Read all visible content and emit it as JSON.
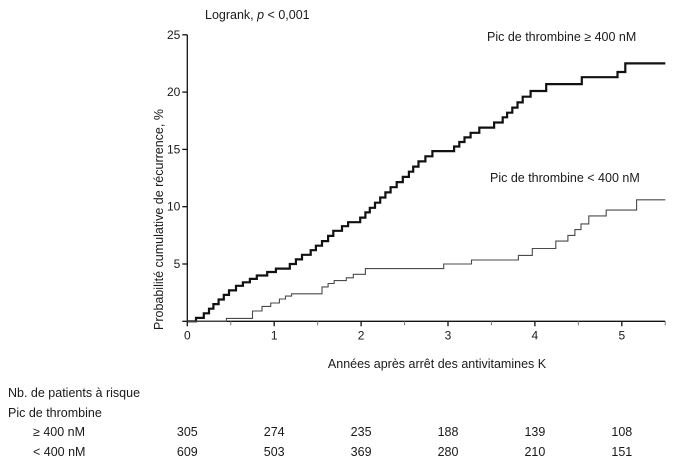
{
  "annotation": {
    "logrank_prefix": "Logrank, ",
    "p_symbol": "p",
    "p_value_suffix": " < 0,001"
  },
  "chart_data": {
    "type": "line",
    "subtype": "kaplan-meier-step",
    "title": "Logrank, p < 0,001",
    "xlabel": "Années après arrêt des antivitamines K",
    "ylabel": "Probabilité cumulative de récurrence, %",
    "xlim": [
      0,
      5.5
    ],
    "ylim": [
      0,
      25
    ],
    "x_ticks": [
      0,
      1,
      2,
      3,
      4,
      5
    ],
    "x_minor_ticks": [
      0.5,
      1.5,
      2.5,
      3.5,
      4.5,
      5.5
    ],
    "y_ticks": [
      0,
      5,
      10,
      15,
      20,
      25
    ],
    "grid": "off",
    "legend_position": "inline-labels",
    "series": [
      {
        "name": "Pic de thrombine ≥ 400 nM",
        "color": "#111111",
        "stroke_width": 2.2,
        "step_points": [
          [
            0,
            0
          ],
          [
            0.1,
            0.3
          ],
          [
            0.19,
            0.7
          ],
          [
            0.25,
            1.1
          ],
          [
            0.3,
            1.5
          ],
          [
            0.36,
            1.9
          ],
          [
            0.42,
            2.3
          ],
          [
            0.48,
            2.7
          ],
          [
            0.56,
            3.1
          ],
          [
            0.64,
            3.4
          ],
          [
            0.72,
            3.7
          ],
          [
            0.8,
            4.0
          ],
          [
            0.92,
            4.3
          ],
          [
            1.02,
            4.6
          ],
          [
            1.18,
            5.0
          ],
          [
            1.25,
            5.4
          ],
          [
            1.32,
            5.8
          ],
          [
            1.42,
            6.2
          ],
          [
            1.48,
            6.6
          ],
          [
            1.55,
            7.0
          ],
          [
            1.62,
            7.45
          ],
          [
            1.68,
            7.9
          ],
          [
            1.78,
            8.3
          ],
          [
            1.85,
            8.65
          ],
          [
            1.99,
            9.05
          ],
          [
            2.05,
            9.5
          ],
          [
            2.1,
            9.9
          ],
          [
            2.16,
            10.35
          ],
          [
            2.22,
            10.8
          ],
          [
            2.28,
            11.25
          ],
          [
            2.34,
            11.7
          ],
          [
            2.41,
            12.15
          ],
          [
            2.48,
            12.6
          ],
          [
            2.55,
            13.05
          ],
          [
            2.6,
            13.5
          ],
          [
            2.66,
            13.95
          ],
          [
            2.74,
            14.4
          ],
          [
            2.82,
            14.85
          ],
          [
            3.07,
            15.25
          ],
          [
            3.13,
            15.65
          ],
          [
            3.19,
            16.05
          ],
          [
            3.26,
            16.45
          ],
          [
            3.36,
            16.9
          ],
          [
            3.53,
            17.35
          ],
          [
            3.63,
            17.8
          ],
          [
            3.68,
            18.2
          ],
          [
            3.74,
            18.65
          ],
          [
            3.8,
            19.1
          ],
          [
            3.86,
            19.6
          ],
          [
            3.95,
            20.1
          ],
          [
            4.13,
            20.7
          ],
          [
            4.54,
            21.3
          ],
          [
            4.95,
            21.75
          ],
          [
            5.04,
            22.5
          ],
          [
            5.5,
            22.5
          ]
        ]
      },
      {
        "name": "Pic de thrombine < 400 nM",
        "color": "#4a4a4a",
        "stroke_width": 1.1,
        "step_points": [
          [
            0,
            0
          ],
          [
            0.45,
            0.25
          ],
          [
            0.75,
            0.9
          ],
          [
            0.86,
            1.3
          ],
          [
            0.96,
            1.6
          ],
          [
            1.06,
            1.95
          ],
          [
            1.13,
            2.2
          ],
          [
            1.2,
            2.4
          ],
          [
            1.55,
            3.0
          ],
          [
            1.62,
            3.3
          ],
          [
            1.69,
            3.55
          ],
          [
            1.83,
            3.8
          ],
          [
            1.91,
            4.1
          ],
          [
            2.05,
            4.6
          ],
          [
            2.95,
            5.0
          ],
          [
            3.27,
            5.35
          ],
          [
            3.81,
            5.75
          ],
          [
            3.97,
            6.35
          ],
          [
            4.24,
            7.0
          ],
          [
            4.38,
            7.5
          ],
          [
            4.46,
            8.0
          ],
          [
            4.53,
            8.5
          ],
          [
            4.62,
            9.2
          ],
          [
            4.82,
            9.7
          ],
          [
            5.17,
            10.6
          ],
          [
            5.5,
            10.6
          ]
        ]
      }
    ]
  },
  "risk_table": {
    "header": "Nb. de patients à risque",
    "subheader": "Pic de thrombine",
    "count_times": [
      0,
      1,
      2,
      3,
      4,
      5
    ],
    "rows": [
      {
        "label": "≥ 400 nM",
        "counts": [
          305,
          274,
          235,
          188,
          139,
          108
        ]
      },
      {
        "label": "< 400 nM",
        "counts": [
          609,
          503,
          369,
          280,
          210,
          151
        ]
      }
    ]
  }
}
